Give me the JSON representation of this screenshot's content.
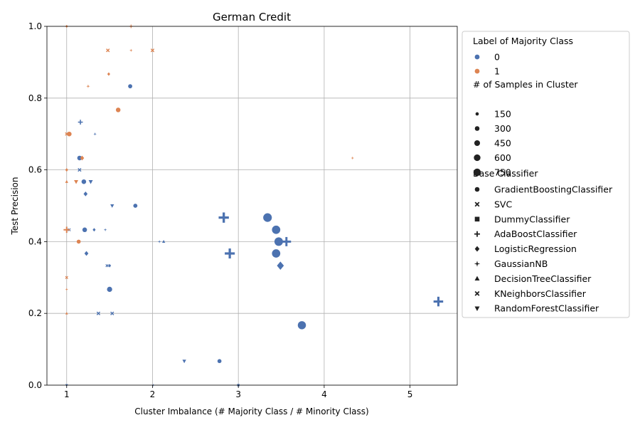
{
  "chart_data": {
    "type": "scatter",
    "title": "German Credit",
    "xlabel": "Cluster Imbalance (# Majority Class / # Minority Class)",
    "ylabel": "Test Precision",
    "xlim": [
      0.77,
      5.55
    ],
    "ylim": [
      0,
      1
    ],
    "xticks": [
      "1",
      "2",
      "3",
      "4",
      "5"
    ],
    "xtick_values": [
      1,
      2,
      3,
      4,
      5
    ],
    "yticks": [
      "0.0",
      "0.2",
      "0.4",
      "0.6",
      "0.8",
      "1.0"
    ],
    "ytick_values": [
      0,
      0.2,
      0.4,
      0.6,
      0.8,
      1.0
    ],
    "grid": true,
    "legend": {
      "placement": "outside-right",
      "hue_title": "Label of Majority Class",
      "hue_entries": [
        {
          "label": "0",
          "color": "#4c72b0"
        },
        {
          "label": "1",
          "color": "#dd8452"
        }
      ],
      "size_title": "# of Samples in Cluster",
      "size_entries": [
        "150",
        "300",
        "450",
        "600",
        "750"
      ],
      "size_values": [
        150,
        300,
        450,
        600,
        750
      ],
      "style_title": "Base Classifier",
      "style_entries": [
        {
          "label": "GradientBoostingClassifier",
          "marker": "circle"
        },
        {
          "label": "SVC",
          "marker": "x"
        },
        {
          "label": "DummyClassifier",
          "marker": "square"
        },
        {
          "label": "AdaBoostClassifier",
          "marker": "plus"
        },
        {
          "label": "LogisticRegression",
          "marker": "diamond"
        },
        {
          "label": "GaussianNB",
          "marker": "star"
        },
        {
          "label": "DecisionTreeClassifier",
          "marker": "triangle"
        },
        {
          "label": "KNeighborsClassifier",
          "marker": "x"
        },
        {
          "label": "RandomForestClassifier",
          "marker": "triangle-down"
        }
      ]
    },
    "points": [
      {
        "x": 3.34,
        "y": 0.467,
        "label": 0,
        "n": 700,
        "clf": "GradientBoostingClassifier"
      },
      {
        "x": 3.44,
        "y": 0.433,
        "label": 0,
        "n": 650,
        "clf": "GradientBoostingClassifier"
      },
      {
        "x": 3.47,
        "y": 0.4,
        "label": 0,
        "n": 680,
        "clf": "GradientBoostingClassifier"
      },
      {
        "x": 3.44,
        "y": 0.367,
        "label": 0,
        "n": 650,
        "clf": "GradientBoostingClassifier"
      },
      {
        "x": 3.74,
        "y": 0.167,
        "label": 0,
        "n": 620,
        "clf": "GradientBoostingClassifier"
      },
      {
        "x": 3.49,
        "y": 0.333,
        "label": 0,
        "n": 450,
        "clf": "LogisticRegression"
      },
      {
        "x": 3.56,
        "y": 0.4,
        "label": 0,
        "n": 550,
        "clf": "AdaBoostClassifier"
      },
      {
        "x": 2.83,
        "y": 0.467,
        "label": 0,
        "n": 680,
        "clf": "AdaBoostClassifier"
      },
      {
        "x": 2.9,
        "y": 0.367,
        "label": 0,
        "n": 650,
        "clf": "AdaBoostClassifier"
      },
      {
        "x": 5.33,
        "y": 0.233,
        "label": 0,
        "n": 600,
        "clf": "AdaBoostClassifier"
      },
      {
        "x": 1.74,
        "y": 0.833,
        "label": 0,
        "n": 160,
        "clf": "GradientBoostingClassifier"
      },
      {
        "x": 1.8,
        "y": 0.5,
        "label": 0,
        "n": 160,
        "clf": "GradientBoostingClassifier"
      },
      {
        "x": 1.5,
        "y": 0.267,
        "label": 0,
        "n": 250,
        "clf": "GradientBoostingClassifier"
      },
      {
        "x": 1.15,
        "y": 0.633,
        "label": 0,
        "n": 200,
        "clf": "GradientBoostingClassifier"
      },
      {
        "x": 1.2,
        "y": 0.567,
        "label": 0,
        "n": 200,
        "clf": "GradientBoostingClassifier"
      },
      {
        "x": 1.21,
        "y": 0.433,
        "label": 0,
        "n": 200,
        "clf": "GradientBoostingClassifier"
      },
      {
        "x": 2.78,
        "y": 0.067,
        "label": 0,
        "n": 150,
        "clf": "GradientBoostingClassifier"
      },
      {
        "x": 1.22,
        "y": 0.533,
        "label": 0,
        "n": 150,
        "clf": "LogisticRegression"
      },
      {
        "x": 1.23,
        "y": 0.367,
        "label": 0,
        "n": 150,
        "clf": "LogisticRegression"
      },
      {
        "x": 1.32,
        "y": 0.433,
        "label": 0,
        "n": 80,
        "clf": "LogisticRegression"
      },
      {
        "x": 1.5,
        "y": 0.333,
        "label": 0,
        "n": 80,
        "clf": "LogisticRegression"
      },
      {
        "x": 1.16,
        "y": 0.733,
        "label": 0,
        "n": 150,
        "clf": "AdaBoostClassifier"
      },
      {
        "x": 1.15,
        "y": 0.6,
        "label": 0,
        "n": 120,
        "clf": "SVC"
      },
      {
        "x": 1.37,
        "y": 0.2,
        "label": 0,
        "n": 120,
        "clf": "SVC"
      },
      {
        "x": 1.53,
        "y": 0.2,
        "label": 0,
        "n": 120,
        "clf": "SVC"
      },
      {
        "x": 1.47,
        "y": 0.333,
        "label": 0,
        "n": 80,
        "clf": "KNeighborsClassifier"
      },
      {
        "x": 1.03,
        "y": 0.433,
        "label": 0,
        "n": 80,
        "clf": "KNeighborsClassifier"
      },
      {
        "x": 1.33,
        "y": 0.7,
        "label": 0,
        "n": 60,
        "clf": "GaussianNB"
      },
      {
        "x": 1.45,
        "y": 0.433,
        "label": 0,
        "n": 60,
        "clf": "GaussianNB"
      },
      {
        "x": 2.08,
        "y": 0.4,
        "label": 0,
        "n": 60,
        "clf": "GaussianNB"
      },
      {
        "x": 2.13,
        "y": 0.4,
        "label": 0,
        "n": 80,
        "clf": "DecisionTreeClassifier"
      },
      {
        "x": 1.28,
        "y": 0.567,
        "label": 0,
        "n": 150,
        "clf": "RandomForestClassifier"
      },
      {
        "x": 1.53,
        "y": 0.5,
        "label": 0,
        "n": 120,
        "clf": "RandomForestClassifier"
      },
      {
        "x": 2.37,
        "y": 0.067,
        "label": 0,
        "n": 120,
        "clf": "RandomForestClassifier"
      },
      {
        "x": 1.0,
        "y": 0.0,
        "label": 0,
        "n": 60,
        "clf": "RandomForestClassifier"
      },
      {
        "x": 2.01,
        "y": 0.0,
        "label": 0,
        "n": 50,
        "clf": "GaussianNB"
      },
      {
        "x": 3.0,
        "y": 0.0,
        "label": 0,
        "n": 50,
        "clf": "DummyClassifier"
      },
      {
        "x": 1.6,
        "y": 0.767,
        "label": 1,
        "n": 200,
        "clf": "GradientBoostingClassifier"
      },
      {
        "x": 1.03,
        "y": 0.7,
        "label": 1,
        "n": 200,
        "clf": "GradientBoostingClassifier"
      },
      {
        "x": 1.14,
        "y": 0.4,
        "label": 1,
        "n": 150,
        "clf": "GradientBoostingClassifier"
      },
      {
        "x": 1.0,
        "y": 0.433,
        "label": 1,
        "n": 250,
        "clf": "AdaBoostClassifier"
      },
      {
        "x": 1.18,
        "y": 0.633,
        "label": 1,
        "n": 150,
        "clf": "LogisticRegression"
      },
      {
        "x": 1.49,
        "y": 0.867,
        "label": 1,
        "n": 80,
        "clf": "LogisticRegression"
      },
      {
        "x": 1.48,
        "y": 0.933,
        "label": 1,
        "n": 120,
        "clf": "SVC"
      },
      {
        "x": 2.0,
        "y": 0.933,
        "label": 1,
        "n": 120,
        "clf": "SVC"
      },
      {
        "x": 1.75,
        "y": 0.933,
        "label": 1,
        "n": 60,
        "clf": "GaussianNB"
      },
      {
        "x": 1.25,
        "y": 0.833,
        "label": 1,
        "n": 80,
        "clf": "GaussianNB"
      },
      {
        "x": 4.33,
        "y": 0.633,
        "label": 1,
        "n": 60,
        "clf": "GaussianNB"
      },
      {
        "x": 1.0,
        "y": 0.267,
        "label": 1,
        "n": 60,
        "clf": "GaussianNB"
      },
      {
        "x": 1.0,
        "y": 0.7,
        "label": 1,
        "n": 100,
        "clf": "KNeighborsClassifier"
      },
      {
        "x": 1.0,
        "y": 0.3,
        "label": 1,
        "n": 80,
        "clf": "KNeighborsClassifier"
      },
      {
        "x": 1.0,
        "y": 0.6,
        "label": 1,
        "n": 80,
        "clf": "LogisticRegression"
      },
      {
        "x": 1.0,
        "y": 0.567,
        "label": 1,
        "n": 80,
        "clf": "DecisionTreeClassifier"
      },
      {
        "x": 1.0,
        "y": 0.2,
        "label": 1,
        "n": 60,
        "clf": "DecisionTreeClassifier"
      },
      {
        "x": 1.0,
        "y": 1.0,
        "label": 1,
        "n": 60,
        "clf": "LogisticRegression"
      },
      {
        "x": 1.75,
        "y": 1.0,
        "label": 1,
        "n": 80,
        "clf": "AdaBoostClassifier"
      },
      {
        "x": 1.11,
        "y": 0.567,
        "label": 1,
        "n": 150,
        "clf": "RandomForestClassifier"
      }
    ]
  }
}
